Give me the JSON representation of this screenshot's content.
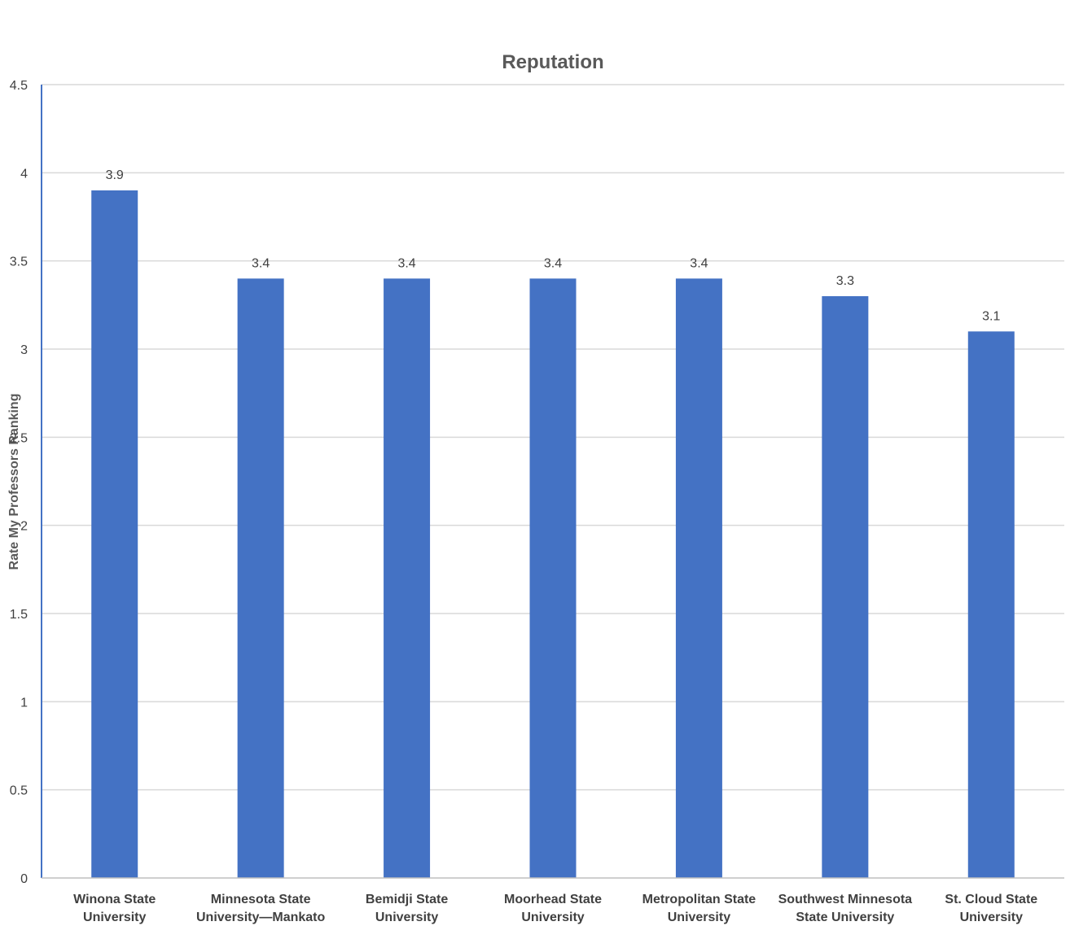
{
  "chart_data": {
    "type": "bar",
    "title": "Reputation",
    "xlabel": "",
    "ylabel": "Rate My Professors Ranking",
    "ylim": [
      0,
      4.5
    ],
    "yticks": [
      "0",
      "0.5",
      "1",
      "1.5",
      "2",
      "2.5",
      "3",
      "3.5",
      "4",
      "4.5"
    ],
    "grid": true,
    "bar_color": "#4472c4",
    "categories": [
      [
        "Winona State",
        "University"
      ],
      [
        "Minnesota State",
        "University—Mankato"
      ],
      [
        "Bemidji State",
        "University"
      ],
      [
        "Moorhead State",
        "University"
      ],
      [
        "Metropolitan State",
        "University"
      ],
      [
        "Southwest Minnesota",
        "State University"
      ],
      [
        "St. Cloud State",
        "University"
      ]
    ],
    "values": [
      3.9,
      3.4,
      3.4,
      3.4,
      3.4,
      3.3,
      3.1
    ],
    "data_labels": [
      "3.9",
      "3.4",
      "3.4",
      "3.4",
      "3.4",
      "3.3",
      "3.1"
    ]
  }
}
